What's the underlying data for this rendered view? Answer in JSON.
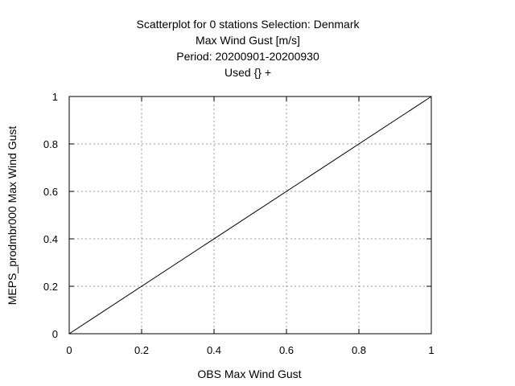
{
  "chart_data": {
    "type": "scatter",
    "title_lines": [
      "Scatterplot for    0 stations Selection: Denmark",
      "Max Wind Gust [m/s]",
      "Period: 20200901-20200930",
      "Used {} +"
    ],
    "xlabel": "OBS Max Wind Gust",
    "ylabel": "MEPS_prodmbr000 Max Wind Gust",
    "xlim": [
      0,
      1
    ],
    "ylim": [
      0,
      1
    ],
    "xticks": [
      "0",
      "0.2",
      "0.4",
      "0.6",
      "0.8",
      "1"
    ],
    "yticks": [
      "0",
      "0.2",
      "0.4",
      "0.6",
      "0.8",
      "1"
    ],
    "grid": true,
    "reference_line": {
      "x": [
        0,
        1
      ],
      "y": [
        0,
        1
      ]
    },
    "series": []
  }
}
